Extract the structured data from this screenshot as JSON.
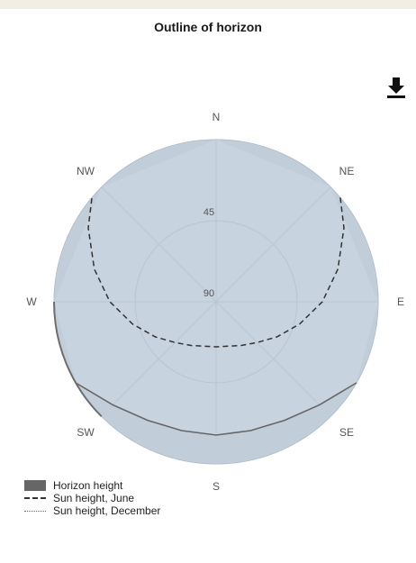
{
  "chart_data": {
    "type": "polar-horizon",
    "title": "Outline of horizon",
    "directions": [
      "N",
      "NE",
      "E",
      "SE",
      "S",
      "SW",
      "W",
      "NW"
    ],
    "elevation_rings": [
      {
        "label": "45",
        "value": 45
      },
      {
        "label": "90",
        "value": 90
      }
    ],
    "series": [
      {
        "name": "Horizon height",
        "style": "area",
        "azimuth": [
          0,
          45,
          90,
          120,
          135,
          150,
          165,
          180,
          195,
          210,
          225,
          240,
          270,
          315,
          360
        ],
        "elevation": [
          0,
          0,
          0,
          0,
          9,
          14,
          16,
          16,
          16,
          14,
          9,
          0,
          0,
          0,
          0
        ]
      },
      {
        "name": "Sun height, June",
        "style": "dashed",
        "azimuth": [
          50,
          60,
          75,
          90,
          105,
          120,
          135,
          150,
          165,
          180,
          195,
          210,
          225,
          240,
          255,
          270,
          285,
          300,
          310
        ],
        "elevation": [
          0,
          8,
          20,
          31,
          42,
          51,
          58,
          62,
          64.5,
          65,
          64.5,
          62,
          58,
          51,
          42,
          31,
          20,
          8,
          0
        ]
      },
      {
        "name": "Sun height, December",
        "style": "dotted",
        "azimuth": [],
        "elevation": []
      }
    ],
    "legend_position": "bottom-left"
  },
  "colors": {
    "sky": "#c7d3de",
    "horizon": "#666666",
    "sun_june": "#333333",
    "grid": "#b9c6d2"
  },
  "icons": {
    "download": "download-icon"
  }
}
